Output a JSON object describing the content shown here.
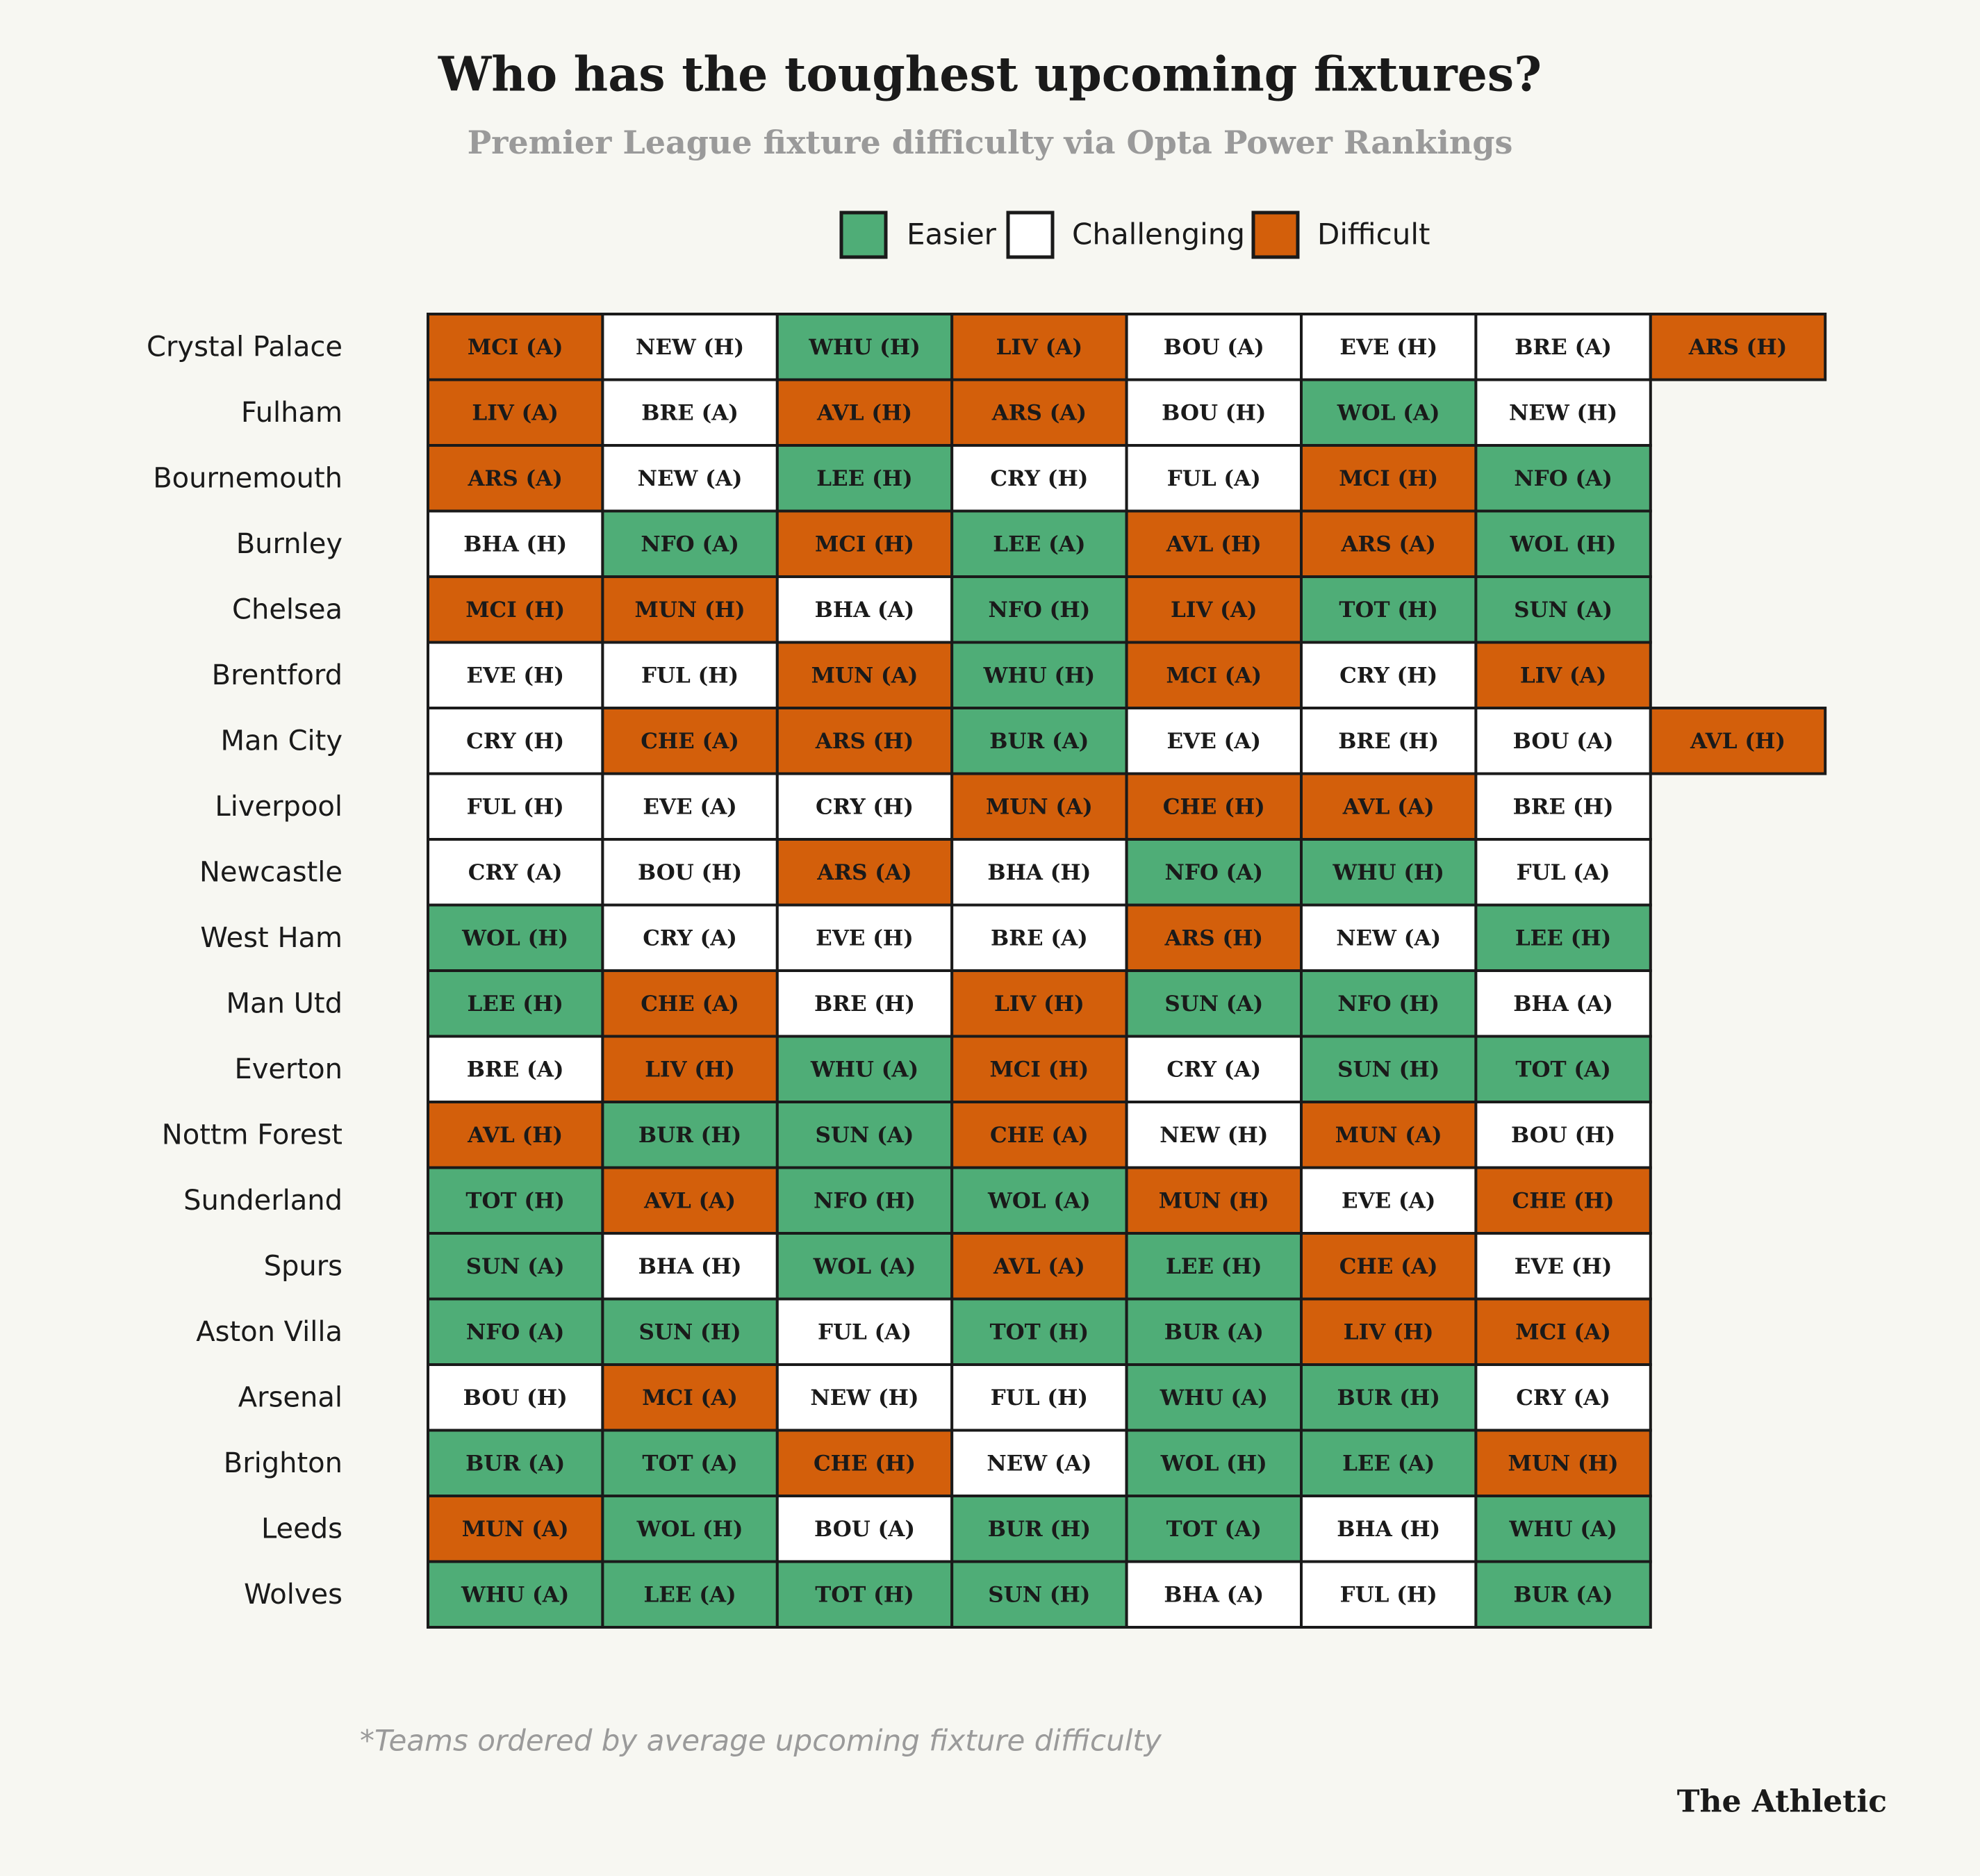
{
  "header": {
    "title": "Who has the toughest upcoming fixtures?",
    "subtitle": "Premier League fixture difficulty via Opta Power Rankings"
  },
  "legend": [
    {
      "label": "Easier",
      "color": "#4fad77"
    },
    {
      "label": "Challenging",
      "color": "#ffffff"
    },
    {
      "label": "Difficult",
      "color": "#d35f0b"
    }
  ],
  "table": {
    "rows": [
      {
        "team": "Crystal Palace",
        "fixtures": [
          [
            "MCI (A)",
            "Difficult"
          ],
          [
            "NEW (H)",
            "Challenging"
          ],
          [
            "WHU (H)",
            "Easier"
          ],
          [
            "LIV (A)",
            "Difficult"
          ],
          [
            "BOU (A)",
            "Challenging"
          ],
          [
            "EVE (H)",
            "Challenging"
          ],
          [
            "BRE (A)",
            "Challenging"
          ],
          [
            "ARS (H)",
            "Difficult"
          ]
        ]
      },
      {
        "team": "Fulham",
        "fixtures": [
          [
            "LIV (A)",
            "Difficult"
          ],
          [
            "BRE (A)",
            "Challenging"
          ],
          [
            "AVL (H)",
            "Difficult"
          ],
          [
            "ARS (A)",
            "Difficult"
          ],
          [
            "BOU (H)",
            "Challenging"
          ],
          [
            "WOL (A)",
            "Easier"
          ],
          [
            "NEW (H)",
            "Challenging"
          ]
        ]
      },
      {
        "team": "Bournemouth",
        "fixtures": [
          [
            "ARS (A)",
            "Difficult"
          ],
          [
            "NEW (A)",
            "Challenging"
          ],
          [
            "LEE (H)",
            "Easier"
          ],
          [
            "CRY (H)",
            "Challenging"
          ],
          [
            "FUL (A)",
            "Challenging"
          ],
          [
            "MCI (H)",
            "Difficult"
          ],
          [
            "NFO (A)",
            "Easier"
          ]
        ]
      },
      {
        "team": "Burnley",
        "fixtures": [
          [
            "BHA (H)",
            "Challenging"
          ],
          [
            "NFO (A)",
            "Easier"
          ],
          [
            "MCI (H)",
            "Difficult"
          ],
          [
            "LEE (A)",
            "Easier"
          ],
          [
            "AVL (H)",
            "Difficult"
          ],
          [
            "ARS (A)",
            "Difficult"
          ],
          [
            "WOL (H)",
            "Easier"
          ]
        ]
      },
      {
        "team": "Chelsea",
        "fixtures": [
          [
            "MCI (H)",
            "Difficult"
          ],
          [
            "MUN (H)",
            "Difficult"
          ],
          [
            "BHA (A)",
            "Challenging"
          ],
          [
            "NFO (H)",
            "Easier"
          ],
          [
            "LIV (A)",
            "Difficult"
          ],
          [
            "TOT (H)",
            "Easier"
          ],
          [
            "SUN (A)",
            "Easier"
          ]
        ]
      },
      {
        "team": "Brentford",
        "fixtures": [
          [
            "EVE (H)",
            "Challenging"
          ],
          [
            "FUL (H)",
            "Challenging"
          ],
          [
            "MUN (A)",
            "Difficult"
          ],
          [
            "WHU (H)",
            "Easier"
          ],
          [
            "MCI (A)",
            "Difficult"
          ],
          [
            "CRY (H)",
            "Challenging"
          ],
          [
            "LIV (A)",
            "Difficult"
          ]
        ]
      },
      {
        "team": "Man City",
        "fixtures": [
          [
            "CRY (H)",
            "Challenging"
          ],
          [
            "CHE (A)",
            "Difficult"
          ],
          [
            "ARS (H)",
            "Difficult"
          ],
          [
            "BUR (A)",
            "Easier"
          ],
          [
            "EVE (A)",
            "Challenging"
          ],
          [
            "BRE (H)",
            "Challenging"
          ],
          [
            "BOU (A)",
            "Challenging"
          ],
          [
            "AVL (H)",
            "Difficult"
          ]
        ]
      },
      {
        "team": "Liverpool",
        "fixtures": [
          [
            "FUL (H)",
            "Challenging"
          ],
          [
            "EVE (A)",
            "Challenging"
          ],
          [
            "CRY (H)",
            "Challenging"
          ],
          [
            "MUN (A)",
            "Difficult"
          ],
          [
            "CHE (H)",
            "Difficult"
          ],
          [
            "AVL (A)",
            "Difficult"
          ],
          [
            "BRE (H)",
            "Challenging"
          ]
        ]
      },
      {
        "team": "Newcastle",
        "fixtures": [
          [
            "CRY (A)",
            "Challenging"
          ],
          [
            "BOU (H)",
            "Challenging"
          ],
          [
            "ARS (A)",
            "Difficult"
          ],
          [
            "BHA (H)",
            "Challenging"
          ],
          [
            "NFO (A)",
            "Easier"
          ],
          [
            "WHU (H)",
            "Easier"
          ],
          [
            "FUL (A)",
            "Challenging"
          ]
        ]
      },
      {
        "team": "West Ham",
        "fixtures": [
          [
            "WOL (H)",
            "Easier"
          ],
          [
            "CRY (A)",
            "Challenging"
          ],
          [
            "EVE (H)",
            "Challenging"
          ],
          [
            "BRE (A)",
            "Challenging"
          ],
          [
            "ARS (H)",
            "Difficult"
          ],
          [
            "NEW (A)",
            "Challenging"
          ],
          [
            "LEE (H)",
            "Easier"
          ]
        ]
      },
      {
        "team": "Man Utd",
        "fixtures": [
          [
            "LEE (H)",
            "Easier"
          ],
          [
            "CHE (A)",
            "Difficult"
          ],
          [
            "BRE (H)",
            "Challenging"
          ],
          [
            "LIV (H)",
            "Difficult"
          ],
          [
            "SUN (A)",
            "Easier"
          ],
          [
            "NFO (H)",
            "Easier"
          ],
          [
            "BHA (A)",
            "Challenging"
          ]
        ]
      },
      {
        "team": "Everton",
        "fixtures": [
          [
            "BRE (A)",
            "Challenging"
          ],
          [
            "LIV (H)",
            "Difficult"
          ],
          [
            "WHU (A)",
            "Easier"
          ],
          [
            "MCI (H)",
            "Difficult"
          ],
          [
            "CRY (A)",
            "Challenging"
          ],
          [
            "SUN (H)",
            "Easier"
          ],
          [
            "TOT (A)",
            "Easier"
          ]
        ]
      },
      {
        "team": "Nottm Forest",
        "fixtures": [
          [
            "AVL (H)",
            "Difficult"
          ],
          [
            "BUR (H)",
            "Easier"
          ],
          [
            "SUN (A)",
            "Easier"
          ],
          [
            "CHE (A)",
            "Difficult"
          ],
          [
            "NEW (H)",
            "Challenging"
          ],
          [
            "MUN (A)",
            "Difficult"
          ],
          [
            "BOU (H)",
            "Challenging"
          ]
        ]
      },
      {
        "team": "Sunderland",
        "fixtures": [
          [
            "TOT (H)",
            "Easier"
          ],
          [
            "AVL (A)",
            "Difficult"
          ],
          [
            "NFO (H)",
            "Easier"
          ],
          [
            "WOL (A)",
            "Easier"
          ],
          [
            "MUN (H)",
            "Difficult"
          ],
          [
            "EVE (A)",
            "Challenging"
          ],
          [
            "CHE (H)",
            "Difficult"
          ]
        ]
      },
      {
        "team": "Spurs",
        "fixtures": [
          [
            "SUN (A)",
            "Easier"
          ],
          [
            "BHA (H)",
            "Challenging"
          ],
          [
            "WOL (A)",
            "Easier"
          ],
          [
            "AVL (A)",
            "Difficult"
          ],
          [
            "LEE (H)",
            "Easier"
          ],
          [
            "CHE (A)",
            "Difficult"
          ],
          [
            "EVE (H)",
            "Challenging"
          ]
        ]
      },
      {
        "team": "Aston Villa",
        "fixtures": [
          [
            "NFO (A)",
            "Easier"
          ],
          [
            "SUN (H)",
            "Easier"
          ],
          [
            "FUL (A)",
            "Challenging"
          ],
          [
            "TOT (H)",
            "Easier"
          ],
          [
            "BUR (A)",
            "Easier"
          ],
          [
            "LIV (H)",
            "Difficult"
          ],
          [
            "MCI (A)",
            "Difficult"
          ]
        ]
      },
      {
        "team": "Arsenal",
        "fixtures": [
          [
            "BOU (H)",
            "Challenging"
          ],
          [
            "MCI (A)",
            "Difficult"
          ],
          [
            "NEW (H)",
            "Challenging"
          ],
          [
            "FUL (H)",
            "Challenging"
          ],
          [
            "WHU (A)",
            "Easier"
          ],
          [
            "BUR (H)",
            "Easier"
          ],
          [
            "CRY (A)",
            "Challenging"
          ]
        ]
      },
      {
        "team": "Brighton",
        "fixtures": [
          [
            "BUR (A)",
            "Easier"
          ],
          [
            "TOT (A)",
            "Easier"
          ],
          [
            "CHE (H)",
            "Difficult"
          ],
          [
            "NEW (A)",
            "Challenging"
          ],
          [
            "WOL (H)",
            "Easier"
          ],
          [
            "LEE (A)",
            "Easier"
          ],
          [
            "MUN (H)",
            "Difficult"
          ]
        ]
      },
      {
        "team": "Leeds",
        "fixtures": [
          [
            "MUN (A)",
            "Difficult"
          ],
          [
            "WOL (H)",
            "Easier"
          ],
          [
            "BOU (A)",
            "Challenging"
          ],
          [
            "BUR (H)",
            "Easier"
          ],
          [
            "TOT (A)",
            "Easier"
          ],
          [
            "BHA (H)",
            "Challenging"
          ],
          [
            "WHU (A)",
            "Easier"
          ]
        ]
      },
      {
        "team": "Wolves",
        "fixtures": [
          [
            "WHU (A)",
            "Easier"
          ],
          [
            "LEE (A)",
            "Easier"
          ],
          [
            "TOT (H)",
            "Easier"
          ],
          [
            "SUN (H)",
            "Easier"
          ],
          [
            "BHA (A)",
            "Challenging"
          ],
          [
            "FUL (H)",
            "Challenging"
          ],
          [
            "BUR (A)",
            "Easier"
          ]
        ]
      }
    ]
  },
  "footnote": "*Teams ordered by average upcoming fixture difficulty",
  "brand": "The Athletic"
}
